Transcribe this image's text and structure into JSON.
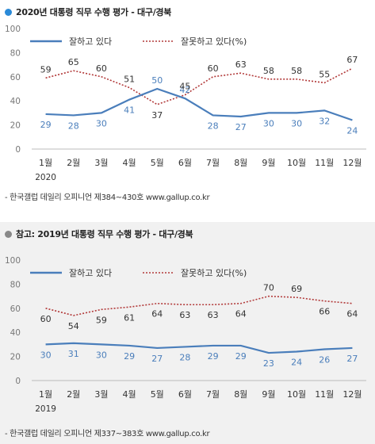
{
  "colors": {
    "approve": "#4a7ebb",
    "disapprove": "#b23a3a",
    "dot_current": "#2a8ad8",
    "dot_ref": "#888888"
  },
  "chart_data": [
    {
      "type": "line",
      "title": "2020년 대통령 직무 수행 평가 - 대구/경북",
      "year_label": "2020",
      "categories": [
        "1월",
        "2월",
        "3월",
        "4월",
        "5월",
        "6월",
        "7월",
        "8월",
        "9월",
        "10월",
        "11월",
        "12월"
      ],
      "ylim": [
        0,
        100
      ],
      "yticks": [
        0,
        20,
        40,
        60,
        80,
        100
      ],
      "grid": false,
      "legend": "top",
      "series": [
        {
          "name": "잘하고 있다",
          "values": [
            29,
            28,
            30,
            41,
            50,
            42,
            28,
            27,
            30,
            30,
            32,
            24
          ]
        },
        {
          "name": "잘못하고 있다(%)",
          "values": [
            59,
            65,
            60,
            51,
            37,
            45,
            60,
            63,
            58,
            58,
            55,
            67
          ]
        }
      ],
      "source": "- 한국갤럽 데일리 오피니언 제384~430호 www.gallup.co.kr"
    },
    {
      "type": "line",
      "title": "참고: 2019년 대통령 직무 수행 평가 - 대구/경북",
      "year_label": "2019",
      "categories": [
        "1월",
        "2월",
        "3월",
        "4월",
        "5월",
        "6월",
        "7월",
        "8월",
        "9월",
        "10월",
        "11월",
        "12월"
      ],
      "ylim": [
        0,
        100
      ],
      "yticks": [
        0,
        20,
        40,
        60,
        80,
        100
      ],
      "grid": false,
      "legend": "top",
      "series": [
        {
          "name": "잘하고 있다",
          "values": [
            30,
            31,
            30,
            29,
            27,
            28,
            29,
            29,
            23,
            24,
            26,
            27
          ]
        },
        {
          "name": "잘못하고 있다(%)",
          "values": [
            60,
            54,
            59,
            61,
            64,
            63,
            63,
            64,
            70,
            69,
            66,
            64
          ]
        }
      ],
      "source": "- 한국갤럽 데일리 오피니언 제337~383호 www.gallup.co.kr"
    }
  ]
}
